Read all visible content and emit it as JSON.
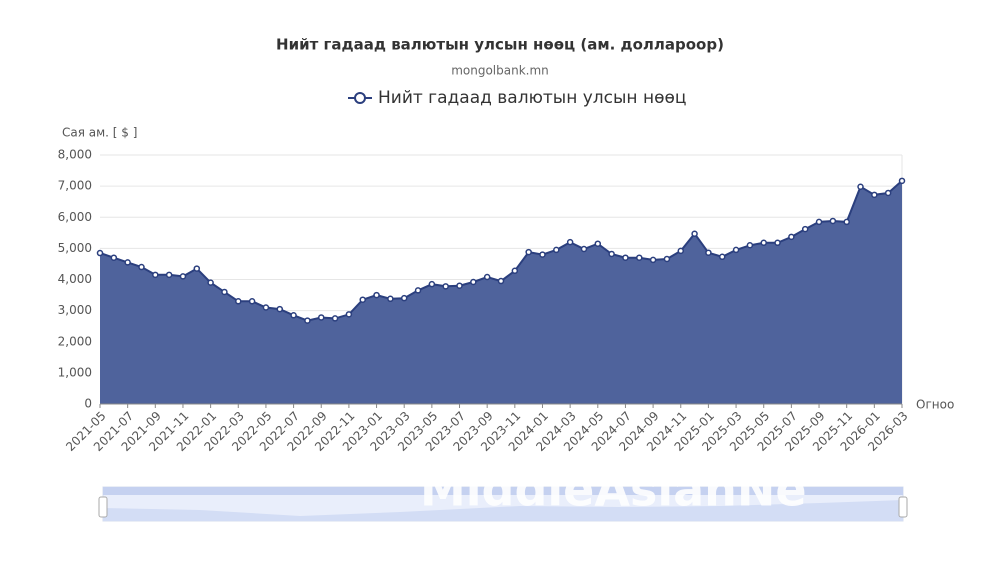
{
  "chart_data": {
    "type": "area",
    "title": "Нийт гадаад валютын улсын нөөц (ам. доллароор)",
    "subtitle": "mongolbank.mn",
    "y_axis_label": "Сая ам. [ $ ]",
    "x_axis_label": "Огноо",
    "watermark": "MiddleAsianNe",
    "categories": [
      "2021-05",
      null,
      "2021-07",
      null,
      "2021-09",
      null,
      "2021-11",
      null,
      "2022-01",
      null,
      "2022-03",
      null,
      "2022-05",
      null,
      "2022-07",
      null,
      "2022-09",
      null,
      "2022-11",
      null,
      "2023-01",
      null,
      "2023-03",
      null,
      "2023-05",
      null,
      "2023-07",
      null,
      "2023-09",
      null,
      "2023-11",
      null,
      "2024-01",
      null,
      "2024-03",
      null,
      "2024-05",
      null,
      "2024-07",
      null,
      "2024-09",
      null,
      "2024-11",
      null,
      "2025-01",
      null,
      "2025-03",
      null,
      "2025-05",
      null,
      "2025-07",
      null,
      "2025-09",
      null,
      "2025-11",
      null,
      "2026-01",
      null,
      "2026-03"
    ],
    "series": [
      {
        "name": "Нийт гадаад валютын улсын нөөц",
        "color": "#2b3f7e",
        "fill": "#4f639c",
        "values": [
          4850,
          4700,
          4550,
          4400,
          4150,
          4150,
          4100,
          4350,
          3900,
          3600,
          3300,
          3300,
          3100,
          3050,
          2850,
          2680,
          2780,
          2750,
          2880,
          3350,
          3500,
          3380,
          3400,
          3650,
          3850,
          3780,
          3800,
          3920,
          4080,
          3950,
          4280,
          4880,
          4800,
          4950,
          5200,
          4980,
          5150,
          4820,
          4700,
          4700,
          4630,
          4660,
          4920,
          5470,
          4860,
          4730,
          4950,
          5100,
          5180,
          5180,
          5370,
          5620,
          5850,
          5880,
          5850,
          6980,
          6720,
          6780,
          7170
        ]
      }
    ],
    "ylim": [
      0,
      8000
    ],
    "yticks": [
      0,
      {
        "value": 1000,
        "label": "1,000"
      },
      {
        "value": 2000,
        "label": "2,000"
      },
      {
        "value": 3000,
        "label": "3,000"
      },
      {
        "value": 4000,
        "label": "4,000"
      },
      {
        "value": 5000,
        "label": "5,000"
      },
      {
        "value": 6000,
        "label": "6,000"
      },
      {
        "value": 7000,
        "label": "7,000"
      },
      {
        "value": 8000,
        "label": "8,000"
      }
    ],
    "grid": true
  }
}
